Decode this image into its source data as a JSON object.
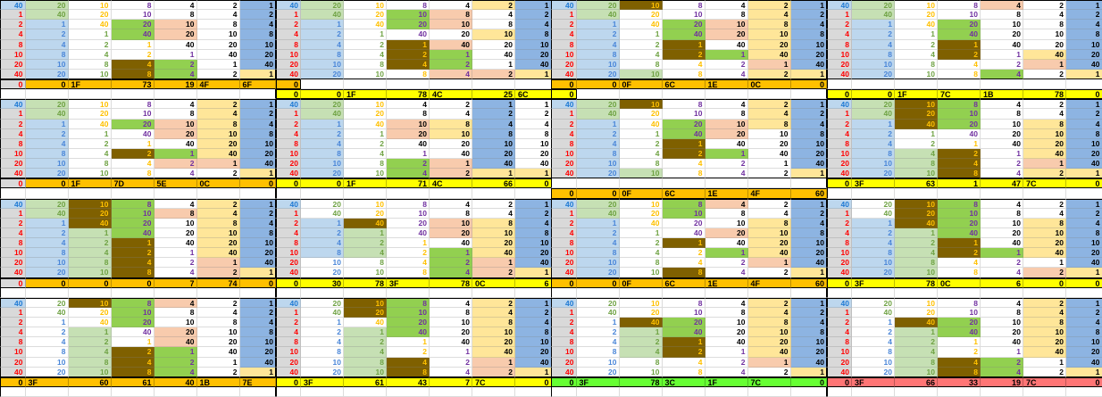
{
  "palette": {
    "bg": {
      "W": "#FFFFFF",
      "GY": "#D9D9D9",
      "LB": "#BDD7EE",
      "PG": "#C6E0B4",
      "MB": "#8DB4E2",
      "CR": "#FFE699",
      "PE": "#F8CBAD",
      "GR": "#92D050",
      "BR": "#7F6000",
      "OR": "#FFC000",
      "YE": "#FFFF00",
      "GN": "#66FF33",
      "RD": "#FF7575"
    },
    "fg": {
      "K": "#000000",
      "R": "#FF0000",
      "B": "#1F7AD4",
      "G": "#6FA243",
      "O": "#FFC000",
      "P": "#7030A0",
      "L": "#4A86D8"
    }
  },
  "value_sets": {
    "std": [
      [
        40,
        20,
        10,
        8,
        4,
        2,
        1
      ],
      [
        1,
        40,
        20,
        10,
        8,
        4,
        2
      ],
      [
        2,
        1,
        40,
        20,
        10,
        8,
        4
      ],
      [
        4,
        2,
        1,
        40,
        20,
        10,
        8
      ],
      [
        8,
        4,
        2,
        1,
        40,
        20,
        10
      ],
      [
        10,
        8,
        4,
        2,
        1,
        40,
        20
      ],
      [
        20,
        10,
        8,
        4,
        2,
        1,
        40
      ],
      [
        40,
        20,
        10,
        8,
        4,
        2,
        1
      ]
    ],
    "alt": [
      [
        40,
        20,
        10,
        4,
        2,
        1,
        1
      ],
      [
        1,
        40,
        20,
        8,
        4,
        2,
        2
      ],
      [
        2,
        1,
        40,
        10,
        8,
        4,
        4
      ],
      [
        4,
        2,
        1,
        20,
        10,
        8,
        8
      ],
      [
        8,
        4,
        2,
        40,
        20,
        10,
        10
      ],
      [
        10,
        8,
        4,
        1,
        40,
        20,
        20
      ],
      [
        20,
        10,
        8,
        2,
        1,
        40,
        40
      ],
      [
        40,
        20,
        10,
        4,
        2,
        1,
        1
      ]
    ]
  },
  "fg_sets": {
    "std": [
      "BRRRRRRR",
      "GGLLLLLL",
      "OOOGGGGG",
      "PPPPOOOO",
      "KKKKKPPP",
      "KKKKKKKK",
      "KKKKKKKK"
    ],
    "alt": [
      "BRRRRRRR",
      "GGLLLLLL",
      "OOOGGGGG",
      "KKKKKPPP",
      "KKKKKKKK",
      "KKKKKKKK",
      "KKKKKKKK"
    ]
  },
  "bands": [
    {
      "blocks": [
        {
          "values": "std",
          "fg": "std",
          "bg": [
            "LB,PG,W,W,W,W,MB",
            "GY,PG,W,W,W,W,MB",
            "GY,LB,W,GR,PE,W,MB",
            "GY,LB,W,GR,PE,W,MB",
            "GY,LB,W,W,W,W,MB",
            "GY,LB,W,W,W,W,MB",
            "GY,LB,W,BR,GR,W,MB",
            "GY,LB,W,BR,GR,W,CR"
          ],
          "r9": {
            "kind": "footer",
            "bg": "OR",
            "cells": [
              "0",
              "0",
              "1F",
              "73",
              "19",
              "4F",
              "6F"
            ],
            "align": "RRLRRLL",
            "c0bg": "GY",
            "c0fg": "R"
          },
          "r10": {
            "kind": "empty"
          }
        },
        {
          "values": "std",
          "fg": "std",
          "bg": [
            "LB,PG,W,W,W,CR,MB",
            "GY,PG,W,GR,PE,W,MB",
            "GY,LB,W,GR,PE,W,MB",
            "GY,LB,W,W,W,CR,MB",
            "GY,LB,W,BR,PE,W,MB",
            "GY,LB,W,BR,GR,W,MB",
            "GY,LB,W,BR,GR,W,MB",
            "GY,LB,W,W,PE,PE,CR"
          ],
          "r9": {
            "kind": "zero",
            "bg": "OR",
            "value": "0"
          },
          "r10": {
            "kind": "footer",
            "bg": "YE",
            "cells": [
              "0",
              "0",
              "1F",
              "78",
              "4C",
              "25",
              "6C"
            ],
            "align": "RRLRLRL"
          }
        },
        {
          "values": "std",
          "fg": "std",
          "bg": [
            "LB,PG,BR,W,W,CR,MB",
            "GY,PG,W,W,W,CR,MB",
            "GY,LB,W,GR,PE,CR,MB",
            "GY,LB,W,GR,PE,CR,MB",
            "GY,LB,W,BR,W,CR,MB",
            "GY,LB,W,BR,GR,CR,MB",
            "GY,LB,W,W,W,PE,MB",
            "GY,LB,PG,W,W,CR,CR"
          ],
          "r9": {
            "kind": "footer",
            "bg": "OR",
            "cells": [
              "0",
              "0",
              "0F",
              "6C",
              "1E",
              "0C",
              "0"
            ],
            "align": "RRLLLLR"
          },
          "r10": {
            "kind": "zero",
            "bg": "YE",
            "value": "0"
          }
        },
        {
          "values": "std",
          "fg": "std",
          "bg": [
            "LB,PG,W,W,PE,W,MB",
            "GY,PG,W,W,W,W,MB",
            "GY,LB,W,GR,W,W,MB",
            "GY,LB,W,GR,W,W,MB",
            "GY,LB,W,BR,W,W,MB",
            "GY,LB,W,BR,W,CR,MB",
            "GY,LB,W,W,W,PE,MB",
            "GY,LB,W,W,GR,W,CR"
          ],
          "r9": {
            "kind": "empty"
          },
          "r10": {
            "kind": "footer",
            "bg": "YE",
            "cells": [
              "0",
              "0",
              "1F",
              "7C",
              "1B",
              "78",
              "0"
            ],
            "align": "RRLLLRR"
          }
        }
      ]
    },
    {
      "blocks": [
        {
          "values": "std",
          "fg": "std",
          "bg": [
            "LB,PG,W,W,W,CR,MB",
            "GY,PG,W,W,W,CR,MB",
            "GY,LB,W,GR,PE,CR,MB",
            "GY,LB,W,W,PE,CR,MB",
            "GY,LB,W,W,W,CR,MB",
            "GY,LB,W,BR,GR,CR,MB",
            "GY,LB,W,W,PE,PE,MB",
            "GY,LB,W,W,W,W,CR"
          ],
          "r9": {
            "kind": "footer",
            "bg": "OR",
            "cells": [
              "0",
              "0",
              "1F",
              "7D",
              "5E",
              "0C",
              "0"
            ],
            "align": "RRLLLLR",
            "c0bg": "GY",
            "c0fg": "R"
          },
          "r10": {
            "kind": "empty"
          }
        },
        {
          "values": "alt",
          "fg": "alt",
          "bg": [
            "LB,PG,W,W,W,MB,W",
            "GY,PG,W,W,W,MB,W",
            "GY,LB,W,PE,CR,MB,W",
            "GY,LB,W,PE,CR,MB,W",
            "GY,LB,W,W,W,MB,W",
            "GY,LB,W,W,W,MB,W",
            "GY,LB,W,GR,PE,MB,W",
            "GY,LB,W,GR,PE,CR,CR"
          ],
          "r9": {
            "kind": "footer",
            "bg": "YE",
            "cells": [
              "0",
              "0",
              "1F",
              "71",
              "4C",
              "66",
              "0"
            ],
            "align": "RRLRLRR"
          },
          "r10": {
            "kind": "empty"
          }
        },
        {
          "values": "std",
          "fg": "std",
          "bg": [
            "LB,PG,BR,W,W,CR,MB",
            "GY,PG,W,W,W,CR,MB",
            "GY,LB,W,GR,PE,CR,MB",
            "GY,LB,W,GR,PE,W,MB",
            "GY,LB,W,BR,W,W,MB",
            "GY,LB,W,BR,GR,W,MB",
            "GY,LB,W,W,W,W,MB",
            "GY,LB,PG,W,W,W,CR"
          ],
          "r9": {
            "kind": "empty"
          },
          "r10": {
            "kind": "footer",
            "bg": "OR",
            "cells": [
              "0",
              "0",
              "0F",
              "6C",
              "1E",
              "4F",
              "60"
            ],
            "align": "RRLLLLR"
          }
        },
        {
          "values": "std",
          "fg": "std",
          "bg": [
            "LB,PG,BR,GR,W,W,MB",
            "GY,PG,BR,GR,W,W,MB",
            "GY,LB,BR,GR,W,CR,MB",
            "GY,LB,W,W,W,CR,MB",
            "GY,LB,W,W,W,CR,MB",
            "GY,LB,PG,BR,W,CR,MB",
            "GY,LB,PG,BR,W,PE,MB",
            "GY,LB,PG,BR,W,CR,CR"
          ],
          "r9": {
            "kind": "footer",
            "bg": "YE",
            "cells": [
              "0",
              "3F",
              "63",
              "1",
              "47",
              "7C",
              "0"
            ],
            "align": "RLRRRLR"
          },
          "r10": {
            "kind": "empty"
          }
        }
      ]
    },
    {
      "blocks": [
        {
          "values": "std",
          "fg": "std",
          "bg": [
            "LB,PG,BR,GR,W,CR,MB",
            "GY,PG,BR,GR,PE,CR,MB",
            "GY,LB,BR,GR,W,CR,MB",
            "GY,LB,PG,GR,W,CR,MB",
            "GY,LB,PG,BR,W,CR,MB",
            "GY,LB,PG,BR,W,CR,MB",
            "GY,LB,PG,BR,W,PE,MB",
            "GY,LB,PG,BR,W,PE,CR"
          ],
          "r9": {
            "kind": "footer",
            "bg": "OR",
            "cells": [
              "0",
              "0",
              "0",
              "0",
              "7",
              "74",
              "0"
            ],
            "align": "RRRRRRR",
            "c0bg": "GY",
            "c0fg": "R"
          },
          "r10": {
            "kind": "empty"
          }
        },
        {
          "values": "std",
          "fg": "std",
          "bg": [
            "LB,W,W,W,W,W,MB",
            "GY,W,W,W,W,W,MB",
            "GY,LB,BR,W,PE,CR,MB",
            "GY,LB,PG,W,PE,CR,MB",
            "GY,LB,PG,W,W,CR,MB",
            "GY,LB,PG,W,GR,CR,MB",
            "GY,W,W,W,GR,PE,MB",
            "GY,W,W,W,GR,PE,CR"
          ],
          "r9": {
            "kind": "footer",
            "bg": "YE",
            "cells": [
              "0",
              "30",
              "78",
              "3F",
              "78",
              "0C",
              "6"
            ],
            "align": "RRRLRLR"
          },
          "r10": {
            "kind": "empty"
          }
        },
        {
          "values": "std",
          "fg": "std",
          "bg": [
            "LB,PG,W,GR,PE,W,MB",
            "GY,PG,W,GR,W,W,MB",
            "GY,LB,W,W,W,CR,MB",
            "GY,LB,W,W,PE,CR,MB",
            "GY,LB,W,BR,W,CR,MB",
            "GY,LB,W,W,GR,CR,MB",
            "GY,LB,W,W,W,PE,MB",
            "GY,LB,W,BR,W,W,CR"
          ],
          "r9": {
            "kind": "footer",
            "bg": "OR",
            "cells": [
              "0",
              "0",
              "0F",
              "6C",
              "1E",
              "4F",
              "60"
            ],
            "align": "RRLLLLR"
          },
          "r10": {
            "kind": "empty"
          }
        },
        {
          "values": "std",
          "fg": "std",
          "bg": [
            "LB,W,BR,GR,W,W,MB",
            "GY,W,BR,GR,W,W,MB",
            "GY,LB,BR,GR,W,CR,MB",
            "GY,LB,PG,GR,W,CR,MB",
            "GY,LB,PG,BR,W,CR,MB",
            "GY,LB,PG,BR,GR,CR,MB",
            "GY,LB,PG,W,W,W,MB",
            "GY,LB,PG,W,W,PE,CR"
          ],
          "r9": {
            "kind": "footer",
            "bg": "YE",
            "cells": [
              "0",
              "3F",
              "78",
              "0C",
              "6",
              "0",
              "0"
            ],
            "align": "RLRLRRR"
          },
          "r10": {
            "kind": "empty"
          }
        }
      ]
    },
    {
      "blocks": [
        {
          "values": "std",
          "fg": "std",
          "bg": [
            "LB,W,BR,GR,PE,W,MB",
            "GY,W,W,GR,W,W,MB",
            "GY,W,W,GR,W,W,MB",
            "GY,W,PG,W,PE,W,MB",
            "GY,W,PG,W,PE,W,MB",
            "GY,W,PG,BR,GR,W,MB",
            "GY,W,PG,BR,GR,W,MB",
            "GY,W,PG,BR,GR,W,CR"
          ],
          "r9": {
            "kind": "footer",
            "bg": "OR",
            "cells": [
              "0",
              "3F",
              "60",
              "61",
              "40",
              "1B",
              "7E"
            ],
            "align": "RLRRRLL"
          },
          "r10": {
            "kind": "empty"
          }
        },
        {
          "values": "std",
          "fg": "std",
          "bg": [
            "LB,W,BR,GR,W,CR,MB",
            "GY,W,BR,GR,W,CR,MB",
            "GY,W,W,GR,W,CR,MB",
            "GY,W,PG,GR,W,CR,MB",
            "GY,W,PG,W,W,CR,MB",
            "GY,W,PG,W,W,CR,MB",
            "GY,W,PG,BR,W,PE,MB",
            "GY,W,PG,BR,W,PE,CR"
          ],
          "r9": {
            "kind": "footer",
            "bg": "YE",
            "cells": [
              "0",
              "3F",
              "61",
              "43",
              "7",
              "7C",
              "0"
            ],
            "align": "RLRRRLR"
          },
          "r10": {
            "kind": "empty"
          }
        },
        {
          "values": "std",
          "fg": "std",
          "bg": [
            "LB,W,W,W,W,CR,MB",
            "GY,W,W,W,W,CR,MB",
            "GY,W,BR,GR,W,CR,MB",
            "GY,W,PG,GR,W,CR,MB",
            "GY,W,PG,BR,W,CR,MB",
            "GY,W,PG,BR,W,CR,MB",
            "GY,W,W,W,W,PE,MB",
            "GY,W,W,W,W,W,CR"
          ],
          "r9": {
            "kind": "footer",
            "bg": "GN",
            "cells": [
              "0",
              "3F",
              "78",
              "3C",
              "1F",
              "7C",
              "0"
            ],
            "align": "RLRLLLR"
          },
          "r10": {
            "kind": "empty"
          }
        },
        {
          "values": "std",
          "fg": "std",
          "bg": [
            "LB,W,W,W,W,CR,MB",
            "GY,W,W,W,W,CR,MB",
            "GY,W,BR,GR,W,CR,MB",
            "GY,W,PG,GR,W,CR,MB",
            "GY,W,PG,W,W,CR,MB",
            "GY,W,PG,W,W,CR,MB",
            "GY,W,PG,BR,GR,W,MB",
            "GY,W,PG,BR,GR,W,CR"
          ],
          "r9": {
            "kind": "footer",
            "bg": "RD",
            "cells": [
              "0",
              "3F",
              "66",
              "33",
              "19",
              "7C",
              "0"
            ],
            "align": "RLRRRLR"
          },
          "r10": {
            "kind": "empty"
          }
        }
      ]
    }
  ]
}
